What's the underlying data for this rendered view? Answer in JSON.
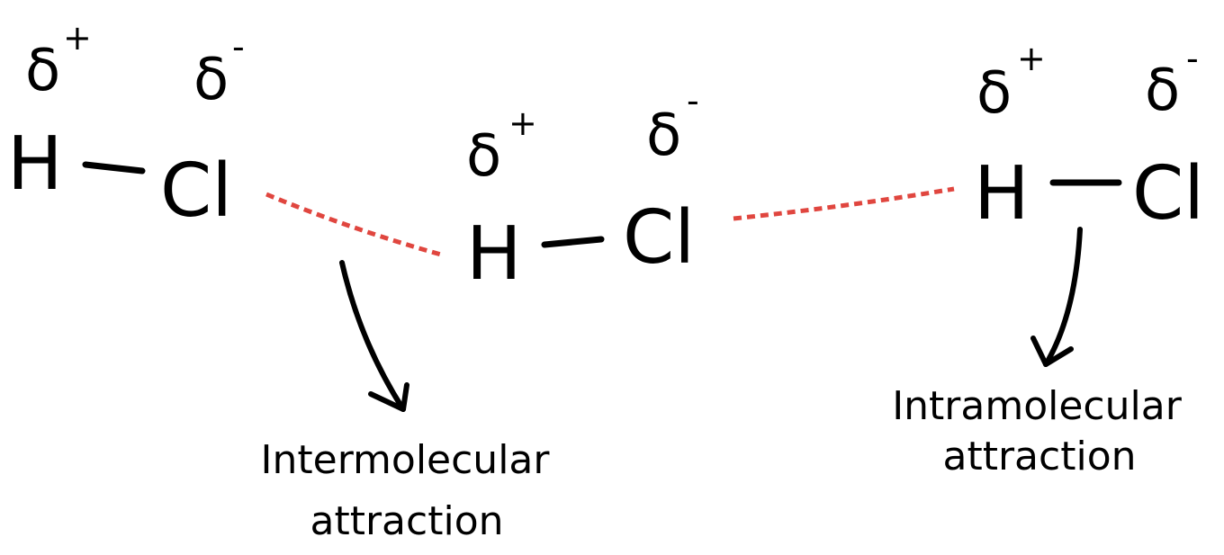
{
  "molecules": [
    {
      "atoms": [
        "H",
        "Cl"
      ],
      "charges": [
        {
          "symbol": "δ",
          "sign": "+"
        },
        {
          "symbol": "δ",
          "sign": "-"
        }
      ]
    },
    {
      "atoms": [
        "H",
        "Cl"
      ],
      "charges": [
        {
          "symbol": "δ",
          "sign": "+"
        },
        {
          "symbol": "δ",
          "sign": "-"
        }
      ]
    },
    {
      "atoms": [
        "H",
        "Cl"
      ],
      "charges": [
        {
          "symbol": "δ",
          "sign": "+"
        },
        {
          "symbol": "δ",
          "sign": "-"
        }
      ]
    }
  ],
  "labels": [
    {
      "lines": [
        "Intermolecular",
        "attraction"
      ]
    },
    {
      "lines": [
        "Intramolecular",
        "attraction"
      ]
    }
  ]
}
